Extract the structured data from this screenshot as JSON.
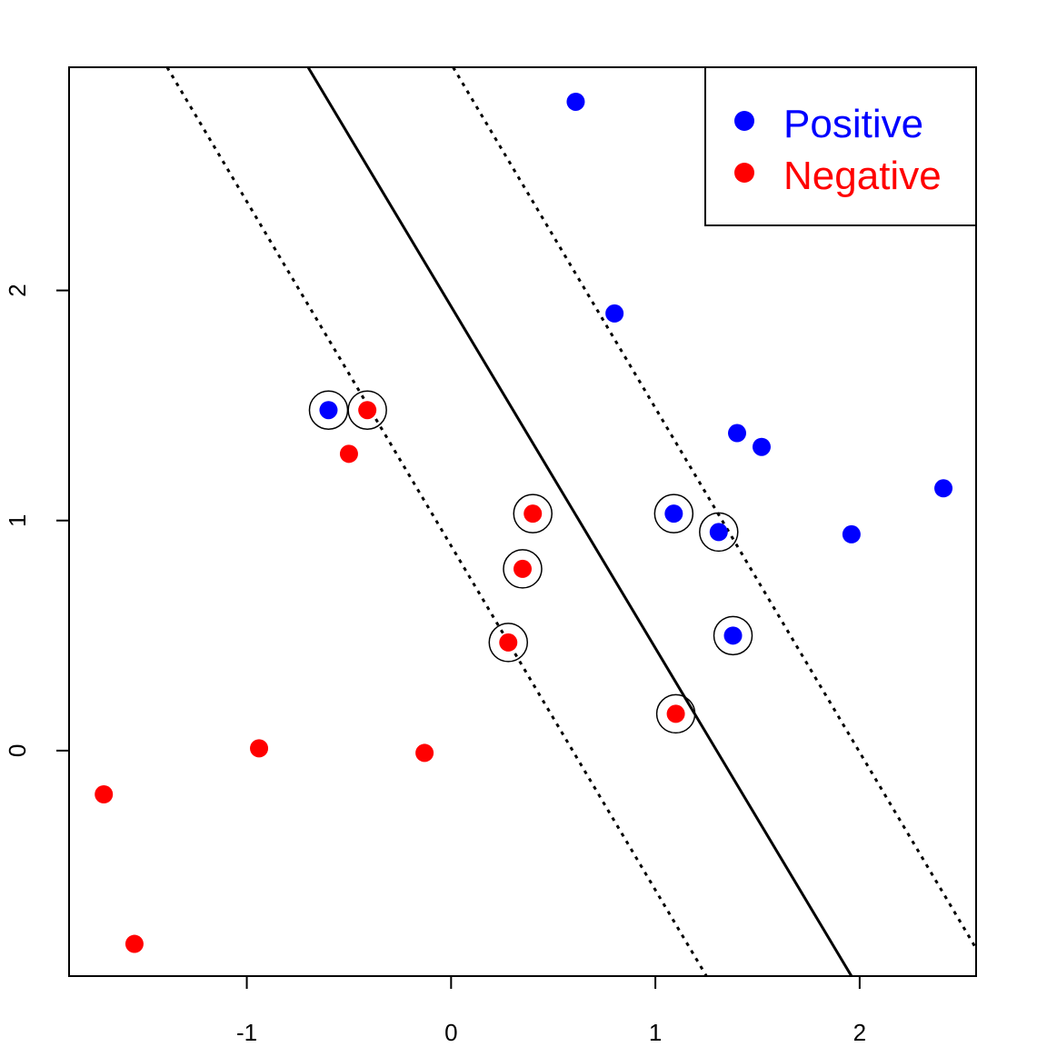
{
  "chart_data": {
    "type": "scatter",
    "title": "",
    "xlabel": "",
    "ylabel": "",
    "xlim": [
      -1.87,
      2.57
    ],
    "ylim": [
      -0.98,
      2.97
    ],
    "x_ticks": [
      {
        "value": -1,
        "label": "-1"
      },
      {
        "value": 0,
        "label": "0"
      },
      {
        "value": 1,
        "label": "1"
      },
      {
        "value": 2,
        "label": "2"
      }
    ],
    "y_ticks": [
      {
        "value": 0,
        "label": "0"
      },
      {
        "value": 1,
        "label": "1"
      },
      {
        "value": 2,
        "label": "2"
      }
    ],
    "grid": false,
    "legend_position": "top-right",
    "series": [
      {
        "name": "Positive",
        "color": "#0000FF",
        "points": [
          {
            "x": 0.61,
            "y": 2.82,
            "support_vector": false
          },
          {
            "x": 0.8,
            "y": 1.9,
            "support_vector": false
          },
          {
            "x": -0.6,
            "y": 1.48,
            "support_vector": true
          },
          {
            "x": 1.4,
            "y": 1.38,
            "support_vector": false
          },
          {
            "x": 1.52,
            "y": 1.32,
            "support_vector": false
          },
          {
            "x": 2.41,
            "y": 1.14,
            "support_vector": false
          },
          {
            "x": 1.09,
            "y": 1.03,
            "support_vector": true
          },
          {
            "x": 1.31,
            "y": 0.95,
            "support_vector": true
          },
          {
            "x": 1.96,
            "y": 0.94,
            "support_vector": false
          },
          {
            "x": 1.38,
            "y": 0.5,
            "support_vector": true
          }
        ]
      },
      {
        "name": "Negative",
        "color": "#FF0000",
        "points": [
          {
            "x": -0.41,
            "y": 1.48,
            "support_vector": true
          },
          {
            "x": -0.5,
            "y": 1.29,
            "support_vector": false
          },
          {
            "x": 0.4,
            "y": 1.03,
            "support_vector": true
          },
          {
            "x": 0.35,
            "y": 0.79,
            "support_vector": true
          },
          {
            "x": 0.28,
            "y": 0.47,
            "support_vector": true
          },
          {
            "x": 1.1,
            "y": 0.16,
            "support_vector": true
          },
          {
            "x": -0.94,
            "y": 0.01,
            "support_vector": false
          },
          {
            "x": -0.13,
            "y": -0.01,
            "support_vector": false
          },
          {
            "x": -1.7,
            "y": -0.19,
            "support_vector": false
          },
          {
            "x": -1.55,
            "y": -0.84,
            "support_vector": false
          }
        ]
      }
    ],
    "lines": [
      {
        "kind": "decision-boundary",
        "style": "solid",
        "from": {
          "x": -0.7,
          "y": 2.97
        },
        "to": {
          "x": 1.96,
          "y": -0.98
        }
      },
      {
        "kind": "margin",
        "style": "dotted",
        "from": {
          "x": -1.39,
          "y": 2.97
        },
        "to": {
          "x": 1.25,
          "y": -0.98
        }
      },
      {
        "kind": "margin",
        "style": "dotted",
        "from": {
          "x": 0.01,
          "y": 2.97
        },
        "to": {
          "x": 2.57,
          "y": -0.86
        }
      }
    ]
  }
}
